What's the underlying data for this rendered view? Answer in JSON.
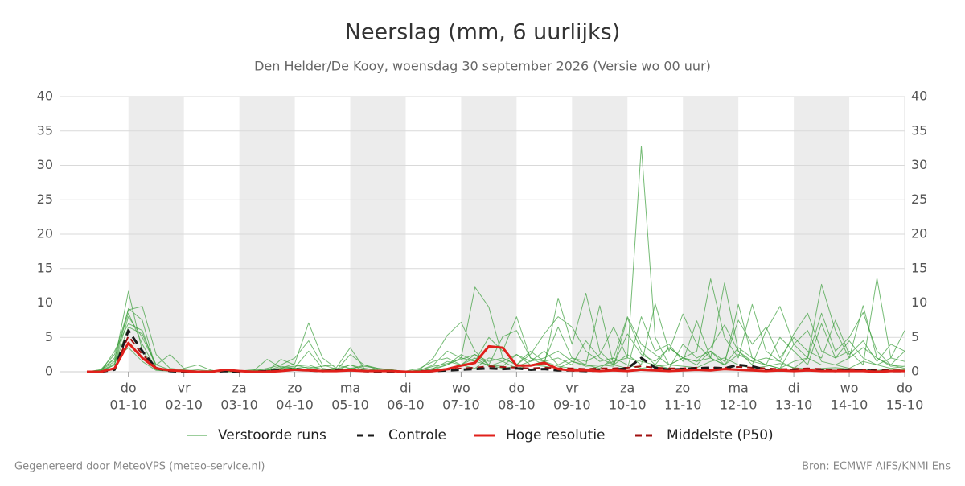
{
  "chart_data": {
    "type": "line",
    "title": "Neerslag (mm, 6 uurlijks)",
    "subtitle": "Den Helder/De Kooy, woensdag 30 september 2026 (Versie wo 00 uur)",
    "footer_left": "Gegenereerd door MeteoVPS (meteo-service.nl)",
    "footer_right": "Bron: ECMWF AIFS/KNMI Ens",
    "grid": true,
    "legend": "bottom",
    "shading": "alternate-days",
    "ylim": [
      0,
      40
    ],
    "yticks": [
      0,
      5,
      10,
      15,
      20,
      25,
      30,
      35,
      40
    ],
    "y2lim": [
      0,
      40
    ],
    "y2ticks": [
      0,
      5,
      10,
      15,
      20,
      25,
      30,
      35,
      40
    ],
    "categories": [
      null,
      null,
      null,
      "01-10",
      null,
      null,
      null,
      "02-10",
      null,
      null,
      null,
      "03-10",
      null,
      null,
      null,
      "04-10",
      null,
      null,
      null,
      "05-10",
      null,
      null,
      null,
      "06-10",
      null,
      null,
      null,
      "07-10",
      null,
      null,
      null,
      "08-10",
      null,
      null,
      null,
      "09-10",
      null,
      null,
      null,
      "10-10",
      null,
      null,
      null,
      "11-10",
      null,
      null,
      null,
      "12-10",
      null,
      null,
      null,
      "13-10",
      null,
      null,
      null,
      "14-10",
      null,
      null,
      null,
      "15-10"
    ],
    "weekdays": [
      null,
      null,
      null,
      "do",
      null,
      null,
      null,
      "vr",
      null,
      null,
      null,
      "za",
      null,
      null,
      null,
      "zo",
      null,
      null,
      null,
      "ma",
      null,
      null,
      null,
      "di",
      null,
      null,
      null,
      "wo",
      null,
      null,
      null,
      "do",
      null,
      null,
      null,
      "vr",
      null,
      null,
      null,
      "za",
      null,
      null,
      null,
      "zo",
      null,
      null,
      null,
      "ma",
      null,
      null,
      null,
      "di",
      null,
      null,
      null,
      "wo",
      null,
      null,
      null,
      "do"
    ],
    "ensemble": {
      "name": "Verstoorde runs",
      "color": "#3a9e3a",
      "runs": [
        [
          0,
          0.2,
          1.5,
          11.7,
          3.0,
          0.5,
          0.3,
          0.2,
          0,
          0,
          0.1,
          0,
          0,
          0.3,
          0.5,
          1.2,
          7.1,
          2.0,
          0.5,
          0.2,
          0.1,
          0,
          0,
          0,
          0.3,
          2.0,
          5.3,
          7.2,
          3.0,
          1.0,
          5.1,
          6.0,
          2.0,
          1.5,
          0.8,
          0.5,
          0.3,
          0.8,
          1.5,
          2.0,
          32.8,
          5.0,
          1.0,
          0.8,
          0.6,
          1.5,
          2.0,
          1.0,
          0.5,
          0.8,
          1.2,
          0.6,
          0.4,
          0.5,
          0.6,
          0.4,
          0.3,
          0.2,
          0.4,
          0.3
        ],
        [
          0,
          0.3,
          2.5,
          9.0,
          9.5,
          2.5,
          0.5,
          0.3,
          0.1,
          0,
          0,
          0,
          0,
          0.2,
          0.8,
          0.5,
          0.3,
          0.2,
          0.6,
          3.5,
          0.5,
          0.2,
          0.3,
          0,
          0.2,
          1.0,
          3.0,
          2.0,
          12.3,
          9.4,
          2.0,
          1.0,
          2.5,
          5.5,
          8.0,
          6.5,
          3.0,
          1.5,
          2.0,
          8.0,
          4.0,
          2.5,
          1.0,
          2.0,
          3.0,
          13.5,
          5.0,
          2.0,
          9.8,
          3.0,
          1.5,
          0.5,
          2.0,
          12.7,
          6.0,
          2.0,
          9.6,
          2.0,
          1.0,
          0.5
        ],
        [
          0,
          0.1,
          1.0,
          8.0,
          5.0,
          1.0,
          2.5,
          0.5,
          1.0,
          0.2,
          0,
          0.1,
          0,
          0,
          1.8,
          1.0,
          0.5,
          0.8,
          1.0,
          0.5,
          0.3,
          0.1,
          0,
          0,
          0,
          0.5,
          1.0,
          2.0,
          1.5,
          5.0,
          3.0,
          8.0,
          2.0,
          1.0,
          10.7,
          4.0,
          11.4,
          3.0,
          1.0,
          2.5,
          1.0,
          9.9,
          3.0,
          8.4,
          4.0,
          2.0,
          12.9,
          3.0,
          1.0,
          6.0,
          9.5,
          4.0,
          2.0,
          8.5,
          3.0,
          5.0,
          8.6,
          3.0,
          1.0,
          3.0
        ],
        [
          0,
          0,
          3.0,
          7.0,
          6.0,
          0.5,
          0.2,
          0.1,
          0.3,
          0.1,
          0,
          0.2,
          0.1,
          0.5,
          1.0,
          2.0,
          4.5,
          1.0,
          0.4,
          1.0,
          0.5,
          0.2,
          0.1,
          0.1,
          0.5,
          1.5,
          2.0,
          1.0,
          2.5,
          1.5,
          2.0,
          1.0,
          3.0,
          1.5,
          6.5,
          2.0,
          1.0,
          9.6,
          1.0,
          0.5,
          8.0,
          3.0,
          4.0,
          1.5,
          7.4,
          2.0,
          1.0,
          9.8,
          2.0,
          1.0,
          5.0,
          3.0,
          1.0,
          7.0,
          2.0,
          3.0,
          1.0,
          13.6,
          2.0,
          6.0
        ],
        [
          0,
          0.1,
          1.2,
          9.2,
          7.5,
          0.3,
          0.1,
          0,
          0,
          0.2,
          0,
          0,
          0.2,
          0.1,
          0.4,
          0.6,
          3.0,
          0.5,
          0.2,
          1.0,
          0.2,
          0.1,
          0,
          0,
          0,
          0.3,
          1.0,
          2.5,
          1.5,
          1.0,
          0.8,
          2.5,
          1.0,
          1.5,
          2.0,
          1.0,
          4.5,
          2.0,
          1.0,
          5.5,
          2.5,
          1.5,
          3.5,
          2.0,
          1.0,
          3.0,
          1.5,
          7.5,
          4.0,
          6.5,
          2.0,
          5.0,
          3.0,
          2.0,
          7.5,
          2.5,
          4.5,
          1.5,
          4.0,
          3.0
        ],
        [
          0,
          0.2,
          2.0,
          8.5,
          4.0,
          0.4,
          0.1,
          0,
          0,
          0.1,
          0.1,
          0,
          0.1,
          1.8,
          0.6,
          0.8,
          1.0,
          0.3,
          0.2,
          0.3,
          1.0,
          0.3,
          0.2,
          0,
          0.1,
          0.5,
          1.5,
          1.0,
          2.0,
          0.8,
          1.5,
          2.5,
          1.5,
          3.0,
          1.0,
          2.0,
          1.5,
          2.5,
          6.5,
          2.0,
          1.5,
          1.0,
          3.5,
          2.0,
          1.5,
          2.0,
          1.0,
          2.5,
          1.5,
          2.0,
          1.5,
          5.5,
          8.5,
          3.0,
          2.0,
          4.5,
          2.0,
          1.0,
          2.0,
          1.5
        ],
        [
          0,
          0.3,
          1.8,
          3.5,
          1.5,
          0.2,
          0.1,
          0,
          0,
          0,
          0,
          0.1,
          0.3,
          0.2,
          0.5,
          0.5,
          0.7,
          0.4,
          0.3,
          0.5,
          0.8,
          0.5,
          0.2,
          0,
          0.2,
          0.8,
          1.2,
          1.8,
          2.5,
          1.0,
          0.5,
          0.8,
          1.5,
          2.0,
          3.0,
          1.5,
          0.8,
          1.0,
          0.8,
          7.8,
          3.0,
          1.0,
          0.5,
          4.0,
          2.0,
          3.0,
          1.0,
          3.5,
          2.0,
          1.0,
          0.5,
          4.0,
          6.0,
          1.5,
          1.0,
          2.0,
          3.5,
          2.0,
          0.8,
          1.0
        ],
        [
          0,
          0,
          1.0,
          6.5,
          5.5,
          1.0,
          0.3,
          0.2,
          0,
          0,
          0,
          0,
          0.1,
          0.2,
          0.3,
          0.2,
          0.3,
          0.2,
          0.2,
          2.5,
          1.0,
          0.5,
          0.3,
          0,
          0.1,
          0.3,
          0.5,
          1.0,
          0.5,
          2.0,
          1.5,
          0.5,
          1.0,
          0.8,
          0.5,
          1.5,
          1.0,
          0.5,
          2.0,
          1.0,
          0.5,
          0.8,
          1.0,
          2.0,
          1.5,
          3.5,
          6.8,
          3.0,
          1.5,
          1.0,
          0.5,
          1.5,
          2.0,
          1.0,
          1.0,
          0.5,
          1.5,
          1.0,
          0.5,
          0.8
        ]
      ]
    },
    "series": [
      {
        "name": "Controle",
        "color": "#1a1a1a",
        "dash": true,
        "values": [
          0,
          0,
          0.3,
          6.0,
          3.0,
          0.5,
          0.1,
          0,
          0,
          0,
          0.1,
          0,
          0,
          0.1,
          0.2,
          0.4,
          0.2,
          0.1,
          0.2,
          0.3,
          0.1,
          0,
          0,
          0,
          0,
          0.1,
          0.2,
          0.3,
          0.4,
          0.5,
          0.4,
          0.5,
          0.3,
          0.4,
          0.2,
          0.2,
          0.1,
          0.2,
          0.3,
          0.5,
          2.0,
          0.6,
          0.3,
          0.4,
          0.5,
          0.6,
          0.5,
          1.0,
          0.8,
          0.3,
          0.2,
          0.2,
          0.3,
          0.2,
          0.1,
          0.2,
          0.2,
          0.1,
          0.1,
          0.1
        ]
      },
      {
        "name": "Hoge resolutie",
        "color": "#e0201b",
        "dash": false,
        "values": [
          0,
          0,
          0.5,
          4.2,
          2.0,
          0.5,
          0.2,
          0.1,
          0,
          0,
          0.3,
          0.1,
          0,
          0,
          0.1,
          0.3,
          0.2,
          0.1,
          0.1,
          0.2,
          0.1,
          0.1,
          0.1,
          0,
          0,
          0.1,
          0.4,
          0.9,
          1.3,
          3.7,
          3.5,
          0.9,
          0.9,
          1.3,
          0.4,
          0.2,
          0.2,
          0.1,
          0.2,
          0.1,
          0.3,
          0.2,
          0.1,
          0.2,
          0.3,
          0.2,
          0.4,
          0.3,
          0.2,
          0.1,
          0.2,
          0.1,
          0.2,
          0.1,
          0.1,
          0.1,
          0.1,
          0,
          0.1,
          0.1
        ]
      },
      {
        "name": "Middelste (P50)",
        "color": "#a01010",
        "dash": true,
        "values": [
          0,
          0,
          0.4,
          5.2,
          2.5,
          0.6,
          0.2,
          0.1,
          0,
          0,
          0.1,
          0.1,
          0,
          0.1,
          0.2,
          0.3,
          0.2,
          0.1,
          0.1,
          0.2,
          0.1,
          0.1,
          0,
          0,
          0.1,
          0.2,
          0.3,
          0.5,
          0.6,
          0.8,
          0.7,
          0.6,
          0.5,
          0.6,
          0.5,
          0.5,
          0.4,
          0.5,
          0.5,
          0.6,
          0.8,
          0.6,
          0.5,
          0.5,
          0.6,
          0.6,
          0.6,
          0.7,
          0.6,
          0.5,
          0.4,
          0.4,
          0.5,
          0.4,
          0.3,
          0.4,
          0.3,
          0.3,
          0.2,
          0.2
        ]
      }
    ]
  }
}
